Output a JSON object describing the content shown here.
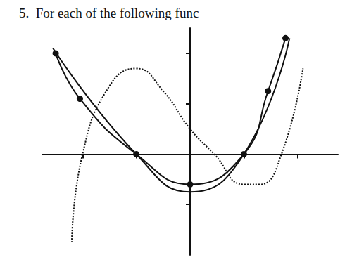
{
  "chart_data": {
    "type": "line",
    "title": "5.  For each of the following func",
    "xlim": [
      -5.5,
      5.5
    ],
    "ylim": [
      -4,
      5
    ],
    "xticks": [
      -4,
      -2,
      0,
      2,
      4
    ],
    "yticks": [
      -2,
      0,
      2,
      4
    ],
    "tick_labels": false,
    "grid": false,
    "series": [
      {
        "color": "#111111",
        "line_style": "dotted",
        "marker": "none",
        "x": [
          -4.4,
          -4,
          -3,
          -2,
          -1,
          0,
          0.9,
          2,
          2.6,
          3.4,
          4.2
        ],
        "values": [
          -3.5,
          0,
          2.7,
          3.4,
          2.5,
          1,
          0,
          -1.2,
          -1.2,
          0,
          3.4
        ]
      },
      {
        "color": "#111111",
        "line_style": "solid",
        "marker": "circle",
        "x": [
          -5,
          -4.1,
          -2,
          0,
          2,
          2.9,
          3.55
        ],
        "values": [
          4,
          2.2,
          0,
          -1.2,
          0,
          2.5,
          4.6
        ]
      },
      {
        "color": "#111111",
        "line_style": "solid",
        "marker": "none",
        "x": [
          -5.1,
          -2,
          0,
          2,
          3.7
        ],
        "values": [
          4.2,
          0,
          -1.5,
          0,
          4.6
        ]
      }
    ]
  }
}
